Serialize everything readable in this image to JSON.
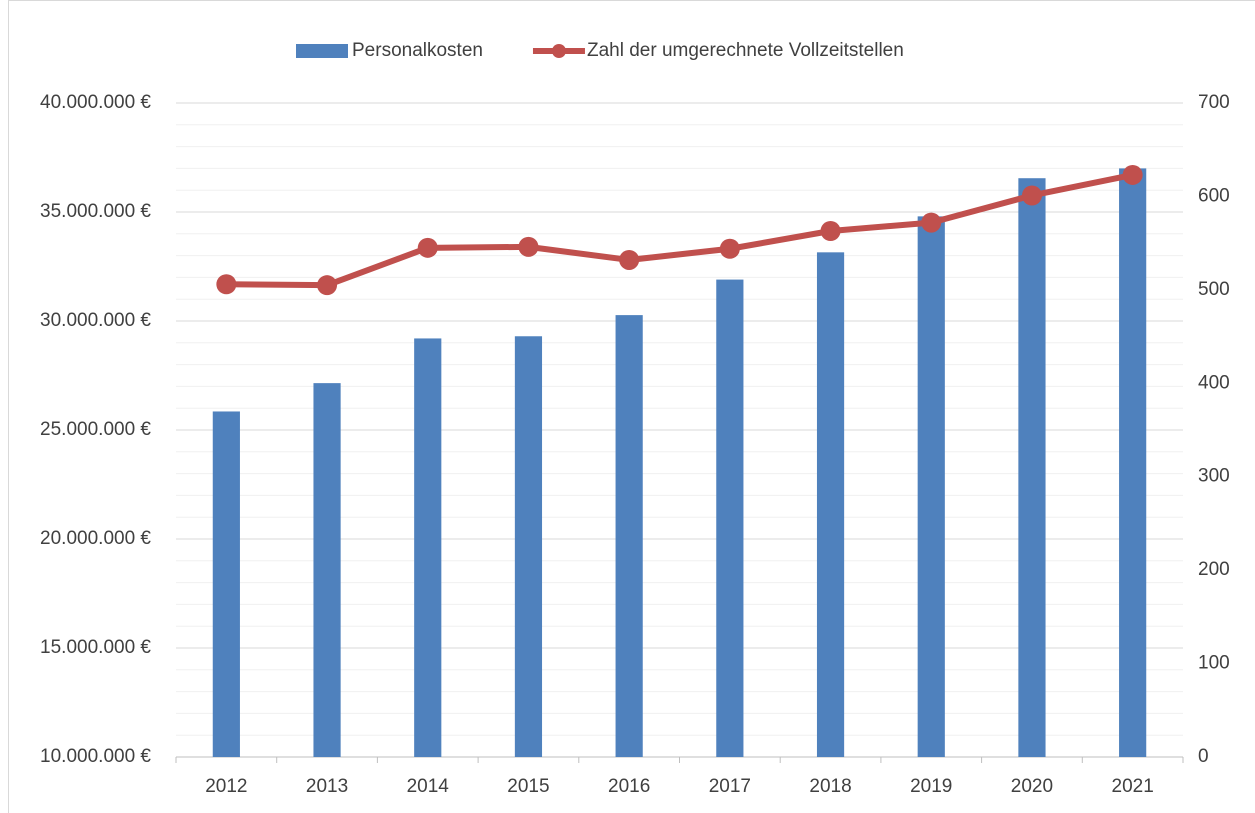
{
  "chart_data": {
    "type": "bar-line",
    "categories": [
      "2012",
      "2013",
      "2014",
      "2015",
      "2016",
      "2017",
      "2018",
      "2019",
      "2020",
      "2021"
    ],
    "series": [
      {
        "name": "Personalkosten",
        "type": "bar",
        "color": "#4f81bd",
        "axis": "y",
        "values": [
          25850000,
          27150000,
          29200000,
          29300000,
          30270000,
          31900000,
          33150000,
          34800000,
          36550000,
          37000000
        ]
      },
      {
        "name": "Zahl der umgerechnete Vollzeitstellen",
        "type": "line",
        "color": "#c0504d",
        "axis": "y2",
        "values": [
          506,
          505,
          545,
          546,
          532,
          544,
          563,
          572,
          601,
          623
        ]
      }
    ],
    "ylim": [
      10000000,
      40000000
    ],
    "yticks": [
      {
        "value": 10000000,
        "label": "10.000.000 €"
      },
      {
        "value": 15000000,
        "label": "15.000.000 €"
      },
      {
        "value": 20000000,
        "label": "20.000.000 €"
      },
      {
        "value": 25000000,
        "label": "25.000.000 €"
      },
      {
        "value": 30000000,
        "label": "30.000.000 €"
      },
      {
        "value": 35000000,
        "label": "35.000.000 €"
      },
      {
        "value": 40000000,
        "label": "40.000.000 €"
      }
    ],
    "y_minor_ticks": [
      11000000,
      12000000,
      13000000,
      14000000,
      16000000,
      17000000,
      18000000,
      19000000,
      21000000,
      22000000,
      23000000,
      24000000,
      26000000,
      27000000,
      28000000,
      29000000,
      31000000,
      32000000,
      33000000,
      34000000,
      36000000,
      37000000,
      38000000,
      39000000
    ],
    "y2lim": [
      0,
      700
    ],
    "y2ticks": [
      0,
      100,
      200,
      300,
      400,
      500,
      600,
      700
    ],
    "grid": true,
    "legend": "top"
  }
}
